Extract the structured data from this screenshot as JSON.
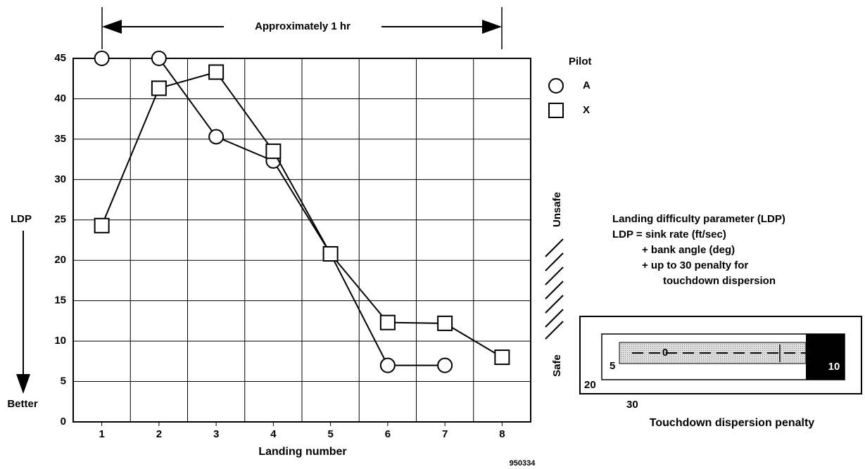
{
  "chart_data": {
    "type": "line",
    "x_label": "Landing number",
    "x": [
      1,
      2,
      3,
      4,
      5,
      6,
      7,
      8
    ],
    "xlim": [
      0.5,
      8.5
    ],
    "xticks": [
      1,
      2,
      3,
      4,
      5,
      6,
      7,
      8
    ],
    "ylim": [
      0,
      45
    ],
    "yticks": [
      0,
      5,
      10,
      15,
      20,
      25,
      30,
      35,
      40,
      45
    ],
    "grid": true,
    "legend_title": "Pilot",
    "series": [
      {
        "name": "A",
        "marker": "circle",
        "color": "#000000",
        "values": [
          45,
          45,
          35.3,
          32.3,
          20.8,
          7,
          7,
          null
        ]
      },
      {
        "name": "X",
        "marker": "square",
        "color": "#000000",
        "values": [
          24.3,
          41.3,
          43.3,
          33.5,
          20.8,
          12.3,
          12.2,
          8
        ]
      }
    ],
    "annotations": {
      "duration": "Approximately 1 hr",
      "y_label": "LDP",
      "y_direction": "Better",
      "unsafe": "Unsafe",
      "safe": "Safe",
      "definition": [
        "Landing difficulty parameter (LDP)",
        "LDP = sink rate (ft/sec)",
        "+ bank angle (deg)",
        "+ up to 30 penalty for",
        "touchdown dispersion"
      ],
      "inset_labels": [
        "0",
        "5",
        "10",
        "20",
        "30"
      ],
      "inset_caption": "Touchdown dispersion penalty",
      "figure_number": "950334"
    }
  }
}
